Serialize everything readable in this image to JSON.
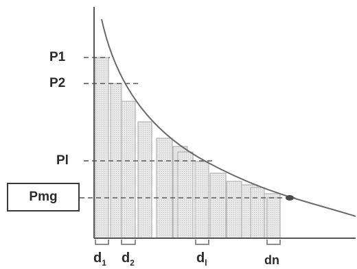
{
  "labels": {
    "p1": "P1",
    "p2": "P2",
    "pl": "Pl",
    "pmg": "Pmg",
    "d1": {
      "base": "d",
      "sub": "1"
    },
    "d2": {
      "base": "d",
      "sub": "2"
    },
    "dl": {
      "base": "d",
      "sub": "l"
    },
    "dn": "dn"
  },
  "colors": {
    "axis": "#555555",
    "curve": "#6a6a6a",
    "bar_fill": "#e6e6e6",
    "bar_stroke": "#b4b4b4",
    "dashed": "#555555",
    "point": "#4a4a4a"
  }
}
